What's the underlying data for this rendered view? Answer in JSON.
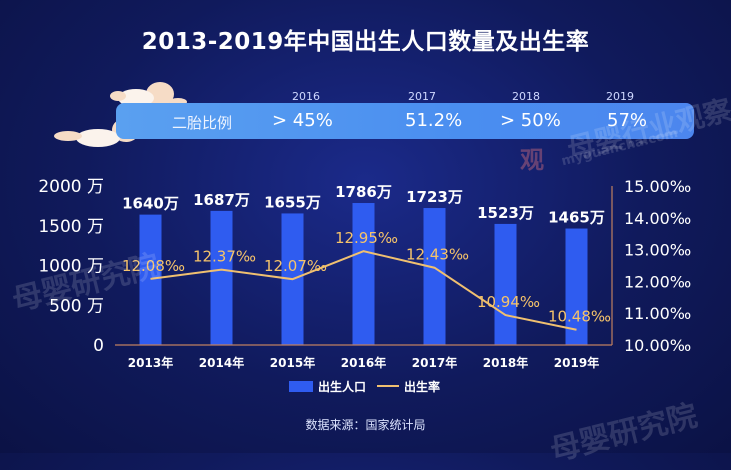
{
  "title": "2013-2019年中国出生人口数量及出生率",
  "ratio": {
    "label": "二胎比例",
    "items": [
      {
        "year": "2016",
        "value": "> 45%"
      },
      {
        "year": "2017",
        "value": "51.2%"
      },
      {
        "year": "2018",
        "value": "> 50%"
      },
      {
        "year": "2019",
        "value": "57%"
      }
    ]
  },
  "chart_data": {
    "type": "bar",
    "categories": [
      "2013年",
      "2014年",
      "2015年",
      "2016年",
      "2017年",
      "2018年",
      "2019年"
    ],
    "series": [
      {
        "name": "出生人口",
        "type": "bar",
        "axis": "left",
        "values": [
          1640,
          1687,
          1655,
          1786,
          1723,
          1523,
          1465
        ],
        "labels": [
          "1640万",
          "1687万",
          "1655万",
          "1786万",
          "1723万",
          "1523万",
          "1465万"
        ]
      },
      {
        "name": "出生率",
        "type": "line",
        "axis": "right",
        "values": [
          12.08,
          12.37,
          12.07,
          12.95,
          12.43,
          10.94,
          10.48
        ],
        "labels": [
          "12.08‰",
          "12.37‰",
          "12.07‰",
          "12.95‰",
          "12.43‰",
          "10.94‰",
          "10.48‰"
        ]
      }
    ],
    "ylim_left": [
      0,
      2000
    ],
    "yticks_left": [
      "0",
      "500 万",
      "1000 万",
      "1500 万",
      "2000 万"
    ],
    "ylim_right": [
      10,
      15
    ],
    "yticks_right": [
      "10.00‰",
      "11.00‰",
      "12.00‰",
      "13.00‰",
      "14.00‰",
      "15.00‰"
    ],
    "legend": [
      "出生人口",
      "出生率"
    ],
    "legend_position": "bottom-center",
    "grid": false
  },
  "colors": {
    "bar": "#2f5cf0",
    "line": "#f0c070",
    "line_label": "#f5c36a",
    "axis": "#c08060",
    "background": "#101a5c"
  },
  "source": "数据来源：国家统计局",
  "watermarks": [
    "母婴行业观察",
    "myguancha.com",
    "母婴研究院",
    "观"
  ]
}
